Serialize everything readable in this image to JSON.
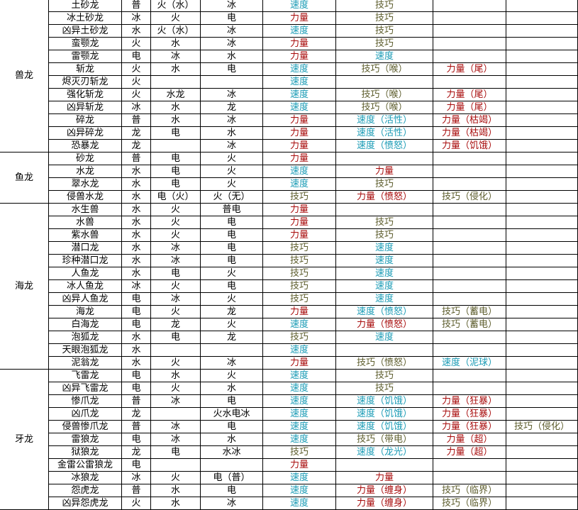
{
  "colors": {
    "速度": "#1a9bb5",
    "力量": "#a80c0c",
    "技巧": "#5e5e2e"
  },
  "groups": [
    {
      "name": "兽龙",
      "rows": [
        [
          "土砂龙",
          "普",
          "火（水）",
          "冰",
          "速度",
          "技巧",
          "",
          ""
        ],
        [
          "冰土砂龙",
          "冰",
          "火",
          "电",
          "力量",
          "技巧",
          "",
          ""
        ],
        [
          "凶异土砂龙",
          "水",
          "火（水）",
          "冰",
          "速度",
          "技巧",
          "",
          ""
        ],
        [
          "蛮颚龙",
          "火",
          "水",
          "冰",
          "力量",
          "技巧",
          "",
          ""
        ],
        [
          "雷颚龙",
          "电",
          "冰",
          "水",
          "力量",
          "速度",
          "",
          ""
        ],
        [
          "斩龙",
          "火",
          "水",
          "电",
          "速度",
          "技巧（喉）",
          "力量（尾）",
          ""
        ],
        [
          "烬灭刃斩龙",
          "火",
          "",
          "",
          "速度",
          "",
          "",
          ""
        ],
        [
          "强化斩龙",
          "火",
          "水龙",
          "冰",
          "速度",
          "技巧（喉）",
          "力量（尾）",
          ""
        ],
        [
          "凶异斩龙",
          "冰",
          "水",
          "龙",
          "速度",
          "技巧（喉）",
          "力量（尾）",
          ""
        ],
        [
          "碎龙",
          "普",
          "水",
          "冰",
          "力量",
          "速度（活性）",
          "力量（枯竭）",
          ""
        ],
        [
          "凶异碎龙",
          "龙",
          "电",
          "水",
          "力量",
          "速度（活性）",
          "力量（枯竭）",
          ""
        ],
        [
          "恐暴龙",
          "龙",
          "",
          "冰",
          "力量",
          "速度（愤怒）",
          "力量（饥饿）",
          ""
        ]
      ]
    },
    {
      "name": "鱼龙",
      "rows": [
        [
          "砂龙",
          "普",
          "电",
          "火",
          "力量",
          "",
          "",
          ""
        ],
        [
          "水龙",
          "水",
          "电",
          "火",
          "速度",
          "力量",
          "",
          ""
        ],
        [
          "翠水龙",
          "水",
          "电",
          "火",
          "速度",
          "技巧",
          "",
          ""
        ],
        [
          "侵兽水龙",
          "水",
          "电（火）",
          "火（无）",
          "技巧",
          "力量（愤怒）",
          "技巧（侵化）",
          ""
        ]
      ]
    },
    {
      "name": "海龙",
      "rows": [
        [
          "水生兽",
          "水",
          "火",
          "普电",
          "力量",
          "",
          "",
          ""
        ],
        [
          "水兽",
          "水",
          "火",
          "电",
          "力量",
          "技巧",
          "",
          ""
        ],
        [
          "紫水兽",
          "水",
          "火",
          "电",
          "力量",
          "技巧",
          "",
          ""
        ],
        [
          "潜口龙",
          "水",
          "冰",
          "电",
          "技巧",
          "速度",
          "",
          ""
        ],
        [
          "珍种潜口龙",
          "水",
          "冰",
          "电",
          "技巧",
          "速度",
          "",
          ""
        ],
        [
          "人鱼龙",
          "水",
          "电",
          "火",
          "技巧",
          "速度",
          "",
          ""
        ],
        [
          "冰人鱼龙",
          "冰",
          "火",
          "电",
          "技巧",
          "速度",
          "",
          ""
        ],
        [
          "凶异人鱼龙",
          "电",
          "冰",
          "火",
          "技巧",
          "速度",
          "",
          ""
        ],
        [
          "海龙",
          "电",
          "火",
          "龙",
          "力量",
          "速度（愤怒）",
          "技巧（蓄电）",
          ""
        ],
        [
          "白海龙",
          "电",
          "龙",
          "火",
          "速度",
          "力量（愤怒）",
          "技巧（蓄电）",
          ""
        ],
        [
          "泡狐龙",
          "水",
          "电",
          "龙",
          "技巧",
          "速度",
          "",
          ""
        ],
        [
          "天眼泡狐龙",
          "水",
          "",
          "",
          "速度",
          "",
          "",
          ""
        ],
        [
          "泥翁龙",
          "水",
          "火",
          "冰",
          "力量",
          "技巧（愤怒）",
          "速度（泥球）",
          ""
        ]
      ]
    },
    {
      "name": "牙龙",
      "rows": [
        [
          "飞雷龙",
          "电",
          "水",
          "火",
          "速度",
          "技巧",
          "",
          ""
        ],
        [
          "凶异飞雷龙",
          "电",
          "火",
          "水",
          "速度",
          "技巧",
          "",
          ""
        ],
        [
          "惨爪龙",
          "普",
          "冰",
          "电",
          "速度",
          "速度（饥饿）",
          "力量（狂暴）",
          ""
        ],
        [
          "凶爪龙",
          "龙",
          "",
          "火水电冰",
          "速度",
          "速度（饥饿）",
          "力量（狂暴）",
          ""
        ],
        [
          "侵兽惨爪龙",
          "普",
          "冰",
          "电",
          "速度",
          "速度（饥饿）",
          "力量（狂暴）",
          "技巧（侵化）"
        ],
        [
          "雷狼龙",
          "电",
          "冰",
          "水",
          "速度",
          "技巧（带电）",
          "力量（超）",
          ""
        ],
        [
          "狱狼龙",
          "龙",
          "电",
          "水冰",
          "技巧",
          "速度（龙光）",
          "力量（超）",
          ""
        ],
        [
          "金雷公雷狼龙",
          "电",
          "",
          "",
          "力量",
          "",
          "",
          ""
        ],
        [
          "冰狼龙",
          "冰",
          "火",
          "电（普）",
          "速度",
          "力量",
          "",
          ""
        ],
        [
          "怨虎龙",
          "普",
          "水",
          "电",
          "速度",
          "力量（缠身）",
          "技巧（临界）",
          ""
        ],
        [
          "凶异怨虎龙",
          "火",
          "水",
          "冰",
          "速度",
          "力量（缠身）",
          "技巧（临界）",
          ""
        ]
      ]
    }
  ]
}
